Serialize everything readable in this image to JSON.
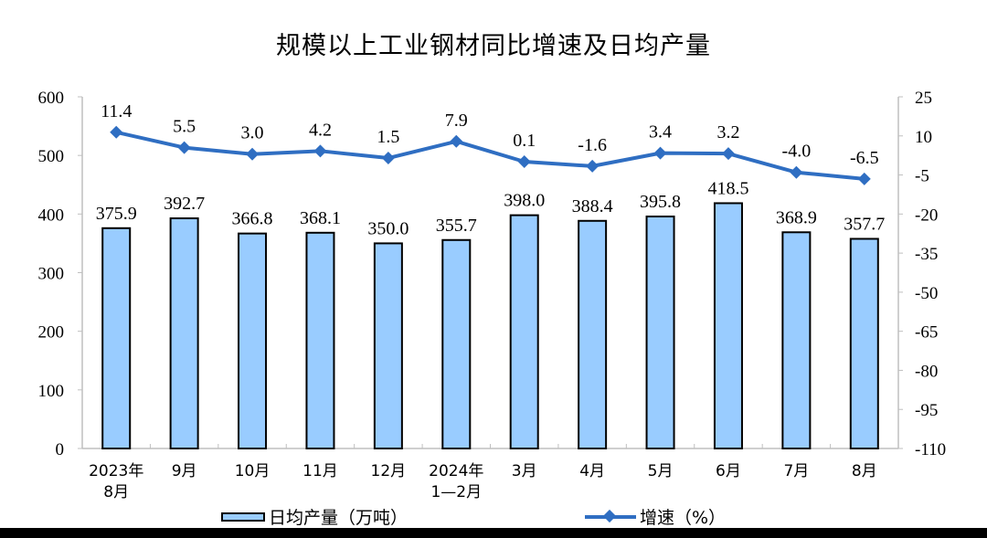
{
  "title": "规模以上工业钢材同比增速及日均产量",
  "legend": {
    "bar_label": "日均产量（万吨）",
    "line_label": "增速（%）"
  },
  "colors": {
    "bar_fill": "#99ccff",
    "bar_stroke": "#000000",
    "line": "#2f6ec2",
    "axis": "#bfbfbf"
  },
  "chart_data": {
    "type": "bar+line",
    "title": "规模以上工业钢材同比增速及日均产量",
    "categories": [
      "2023年\n8月",
      "9月",
      "10月",
      "11月",
      "12月",
      "2024年\n1—2月",
      "3月",
      "4月",
      "5月",
      "6月",
      "7月",
      "8月"
    ],
    "series": [
      {
        "name": "日均产量（万吨）",
        "type": "bar",
        "axis": "left",
        "values": [
          375.9,
          392.7,
          366.8,
          368.1,
          350.0,
          355.7,
          398.0,
          388.4,
          395.8,
          418.5,
          368.9,
          357.7
        ]
      },
      {
        "name": "增速（%）",
        "type": "line",
        "axis": "right",
        "values": [
          11.4,
          5.5,
          3.0,
          4.2,
          1.5,
          7.9,
          0.1,
          -1.6,
          3.4,
          3.2,
          -4.0,
          -6.5
        ]
      }
    ],
    "y_left": {
      "ylim": [
        0,
        600
      ],
      "ticks": [
        0,
        100,
        200,
        300,
        400,
        500,
        600
      ]
    },
    "y_right": {
      "ylim": [
        -110,
        25
      ],
      "ticks": [
        25,
        10,
        -5,
        -20,
        -35,
        -50,
        -65,
        -80,
        -95,
        -110
      ]
    },
    "xlabel": "",
    "ylabel": "",
    "grid": false,
    "legend_position": "bottom"
  }
}
